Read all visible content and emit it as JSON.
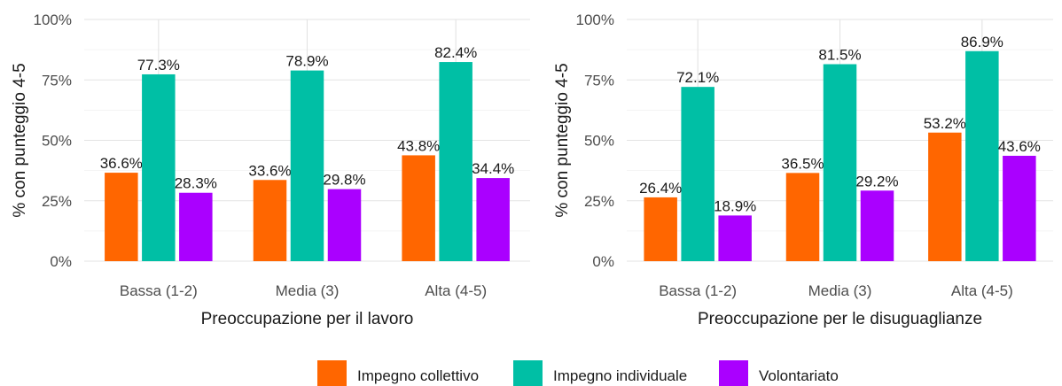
{
  "legend": {
    "items": [
      {
        "label": "Impegno collettivo",
        "color": "#FF6600"
      },
      {
        "label": "Impegno individuale",
        "color": "#00BFA5"
      },
      {
        "label": "Volontariato",
        "color": "#AA00FF"
      }
    ]
  },
  "chart_data": [
    {
      "type": "bar",
      "title": "",
      "xlabel": "Preoccupazione per il lavoro",
      "ylabel": "% con punteggio 4-5",
      "categories": [
        "Bassa (1-2)",
        "Media (3)",
        "Alta (4-5)"
      ],
      "ylim": [
        0,
        100
      ],
      "yticks": [
        "0%",
        "25%",
        "50%",
        "75%",
        "100%"
      ],
      "ytick_values": [
        0,
        25,
        50,
        75,
        100
      ],
      "grid": true,
      "legend_position": "bottom",
      "series": [
        {
          "name": "Impegno collettivo",
          "color": "#FF6600",
          "values": [
            36.6,
            33.6,
            43.8
          ],
          "labels": [
            "36.6%",
            "33.6%",
            "43.8%"
          ]
        },
        {
          "name": "Impegno individuale",
          "color": "#00BFA5",
          "values": [
            77.3,
            78.9,
            82.4
          ],
          "labels": [
            "77.3%",
            "78.9%",
            "82.4%"
          ]
        },
        {
          "name": "Volontariato",
          "color": "#AA00FF",
          "values": [
            28.3,
            29.8,
            34.4
          ],
          "labels": [
            "28.3%",
            "29.8%",
            "34.4%"
          ]
        }
      ]
    },
    {
      "type": "bar",
      "title": "",
      "xlabel": "Preoccupazione per le disuguaglianze",
      "ylabel": "% con punteggio 4-5",
      "categories": [
        "Bassa (1-2)",
        "Media (3)",
        "Alta (4-5)"
      ],
      "ylim": [
        0,
        100
      ],
      "yticks": [
        "0%",
        "25%",
        "50%",
        "75%",
        "100%"
      ],
      "ytick_values": [
        0,
        25,
        50,
        75,
        100
      ],
      "grid": true,
      "legend_position": "bottom",
      "series": [
        {
          "name": "Impegno collettivo",
          "color": "#FF6600",
          "values": [
            26.4,
            36.5,
            53.2
          ],
          "labels": [
            "26.4%",
            "36.5%",
            "53.2%"
          ]
        },
        {
          "name": "Impegno individuale",
          "color": "#00BFA5",
          "values": [
            72.1,
            81.5,
            86.9
          ],
          "labels": [
            "72.1%",
            "81.5%",
            "86.9%"
          ]
        },
        {
          "name": "Volontariato",
          "color": "#AA00FF",
          "values": [
            18.9,
            29.2,
            43.6
          ],
          "labels": [
            "18.9%",
            "29.2%",
            "43.6%"
          ]
        }
      ]
    }
  ]
}
